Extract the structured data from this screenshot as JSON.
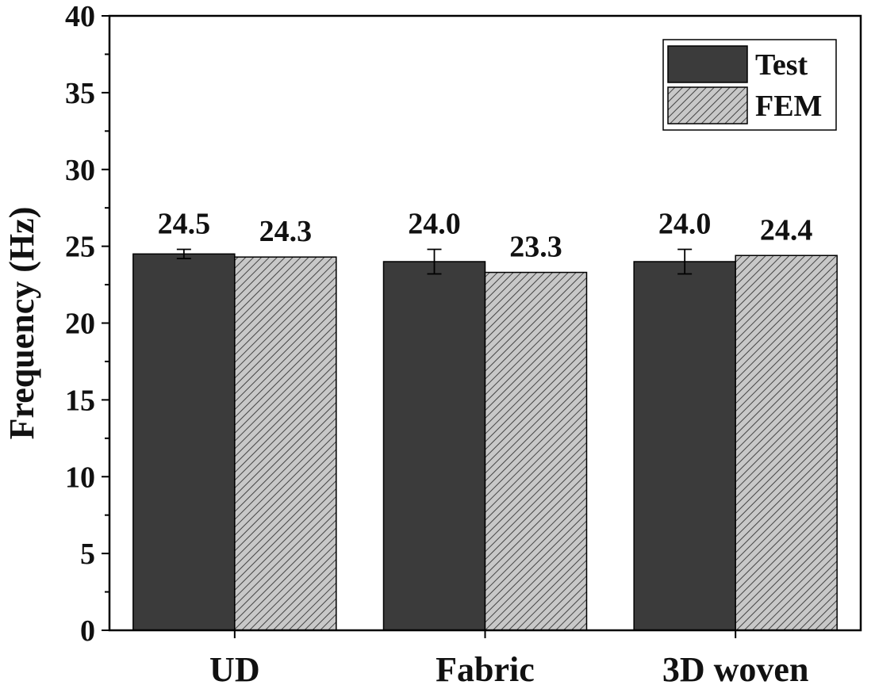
{
  "chart_data": {
    "type": "bar",
    "categories": [
      "UD",
      "Fabric",
      "3D woven"
    ],
    "series": [
      {
        "name": "Test",
        "values": [
          24.5,
          24.0,
          24.0
        ],
        "errors": [
          0.3,
          0.8,
          0.8
        ],
        "color": "#3b3b3b",
        "pattern": "solid"
      },
      {
        "name": "FEM",
        "values": [
          24.3,
          23.3,
          24.4
        ],
        "color": "#c8c8c8",
        "pattern": "diagonal-hatch"
      }
    ],
    "data_labels": [
      [
        "24.5",
        "24.0",
        "24.0"
      ],
      [
        "24.3",
        "23.3",
        "24.4"
      ]
    ],
    "ylabel": "Frequency (Hz)",
    "xlabel": "",
    "ylim": [
      0,
      40
    ],
    "yticks": [
      0,
      5,
      10,
      15,
      20,
      25,
      30,
      35,
      40
    ],
    "grid": false,
    "legend_position": "top-right"
  }
}
